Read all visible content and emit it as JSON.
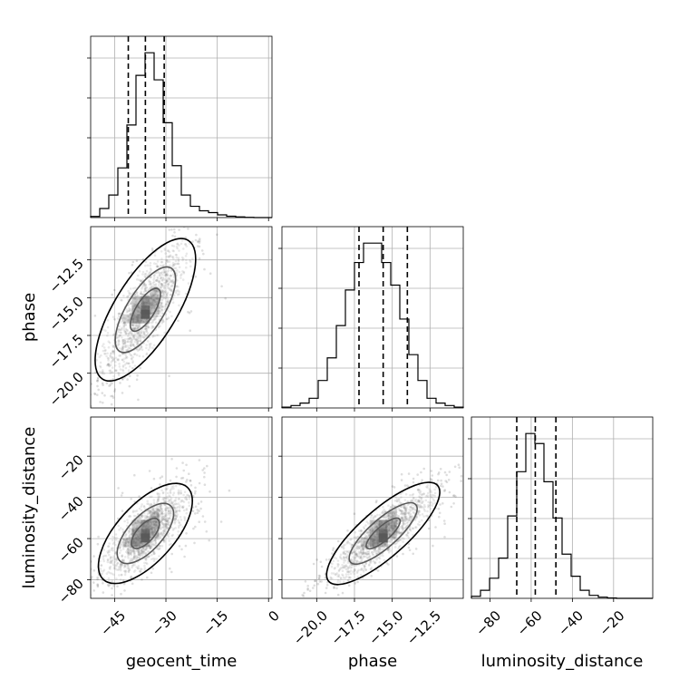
{
  "chart_data": {
    "type": "corner",
    "parameters": [
      "geocent_time",
      "phase",
      "luminosity_distance"
    ],
    "axis_labels": {
      "geocent_time": "geocent_time",
      "phase": "phase",
      "luminosity_distance": "luminosity_distance"
    },
    "ranges": {
      "geocent_time": [
        -52,
        1
      ],
      "phase": [
        -22.3,
        -10.3
      ],
      "luminosity_distance": [
        -89,
        -1
      ]
    },
    "ticks": {
      "geocent_time": [
        {
          "value": -45,
          "label": "−45"
        },
        {
          "value": -30,
          "label": "−30"
        },
        {
          "value": -15,
          "label": "−15"
        },
        {
          "value": 0,
          "label": "0"
        }
      ],
      "phase": [
        {
          "value": -20.0,
          "label": "−20.0"
        },
        {
          "value": -17.5,
          "label": "−17.5"
        },
        {
          "value": -15.0,
          "label": "−15.0"
        },
        {
          "value": -12.5,
          "label": "−12.5"
        }
      ],
      "luminosity_distance": [
        {
          "value": -80,
          "label": "−80"
        },
        {
          "value": -60,
          "label": "−60"
        },
        {
          "value": -40,
          "label": "−40"
        },
        {
          "value": -20,
          "label": "−20"
        }
      ]
    },
    "quantiles": {
      "geocent_time": [
        -41.0,
        -36.0,
        -30.5
      ],
      "phase": [
        -17.2,
        -15.6,
        -14.0
      ],
      "luminosity_distance": [
        -67,
        -58,
        -48
      ]
    },
    "histograms": {
      "geocent_time": {
        "edges": [
          -52,
          -49.35,
          -46.7,
          -44.05,
          -41.4,
          -38.75,
          -36.1,
          -33.45,
          -30.8,
          -28.15,
          -25.5,
          -22.85,
          -20.2,
          -17.55,
          -14.9,
          -12.25,
          -9.6,
          -6.95,
          -4.3,
          -1.65,
          1
        ],
        "counts": [
          0.5,
          4,
          10,
          22,
          41,
          63,
          73,
          61,
          42,
          23,
          10,
          5,
          3,
          2.2,
          1.2,
          0.6,
          0.3,
          0.1,
          0,
          0
        ]
      },
      "phase": {
        "edges": [
          -22.3,
          -21.7,
          -21.1,
          -20.5,
          -19.9,
          -19.3,
          -18.7,
          -18.1,
          -17.5,
          -16.9,
          -16.3,
          -15.7,
          -15.1,
          -14.5,
          -13.9,
          -13.3,
          -12.7,
          -12.1,
          -11.5,
          -10.9,
          -10.3
        ],
        "counts": [
          0.5,
          1.5,
          3,
          6,
          17,
          31,
          51,
          73,
          90,
          102,
          102,
          90,
          76,
          55,
          33,
          17,
          6,
          3,
          1.5,
          0.5
        ]
      },
      "luminosity_distance": {
        "edges": [
          -89,
          -84.6,
          -80.2,
          -75.8,
          -71.4,
          -67,
          -62.6,
          -58.2,
          -53.8,
          -49.4,
          -45,
          -40.6,
          -36.2,
          -31.8,
          -27.4,
          -23,
          -18.6,
          -14.2,
          -9.8,
          -5.4,
          -1
        ],
        "counts": [
          1,
          4,
          10,
          20,
          41,
          63,
          82,
          77,
          58,
          40,
          22,
          11,
          4,
          1.5,
          0.6,
          0.2,
          0,
          0,
          0,
          0
        ]
      }
    },
    "pairs": [
      {
        "x": "geocent_time",
        "y": "phase",
        "mean": [
          -36,
          -15.8
        ],
        "sd": [
          6,
          2.2
        ],
        "rho": 0.8,
        "grid_y": "y2"
      },
      {
        "x": "geocent_time",
        "y": "luminosity_distance",
        "mean": [
          -36,
          -57.5
        ],
        "sd": [
          6,
          11
        ],
        "rho": 0.72,
        "grid_y": "y3"
      },
      {
        "x": "phase",
        "y": "luminosity_distance",
        "mean": [
          -15.6,
          -57.5
        ],
        "sd": [
          1.7,
          11
        ],
        "rho": 0.85,
        "grid_y": "y3"
      }
    ],
    "grid": true,
    "sample_color": "#000000",
    "histogram_color": "#000000",
    "quantile_line_style": "dashed"
  }
}
